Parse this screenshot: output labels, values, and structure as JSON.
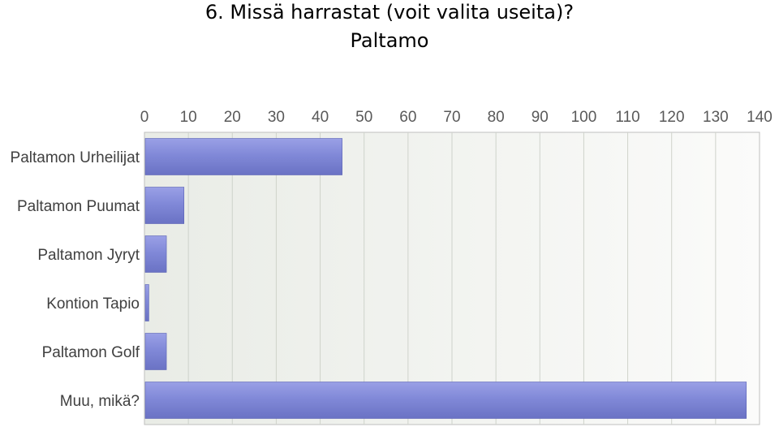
{
  "chart_data": {
    "type": "bar",
    "orientation": "horizontal",
    "title": "6. Missä harrastat (voit valita useita)?",
    "subtitle": "Paltamo",
    "categories": [
      "Paltamon Urheilijat",
      "Paltamon Puumat",
      "Paltamon Jyryt",
      "Kontion Tapio",
      "Paltamon Golf",
      "Muu, mikä?"
    ],
    "values": [
      45,
      9,
      5,
      1,
      5,
      137
    ],
    "xlim": [
      0,
      140
    ],
    "xticks": [
      "0",
      "10",
      "20",
      "30",
      "40",
      "50",
      "60",
      "70",
      "80",
      "90",
      "100",
      "110",
      "120",
      "130",
      "140"
    ],
    "x_axis_position": "top",
    "grid": true,
    "bar_color": "#7f87d6"
  }
}
